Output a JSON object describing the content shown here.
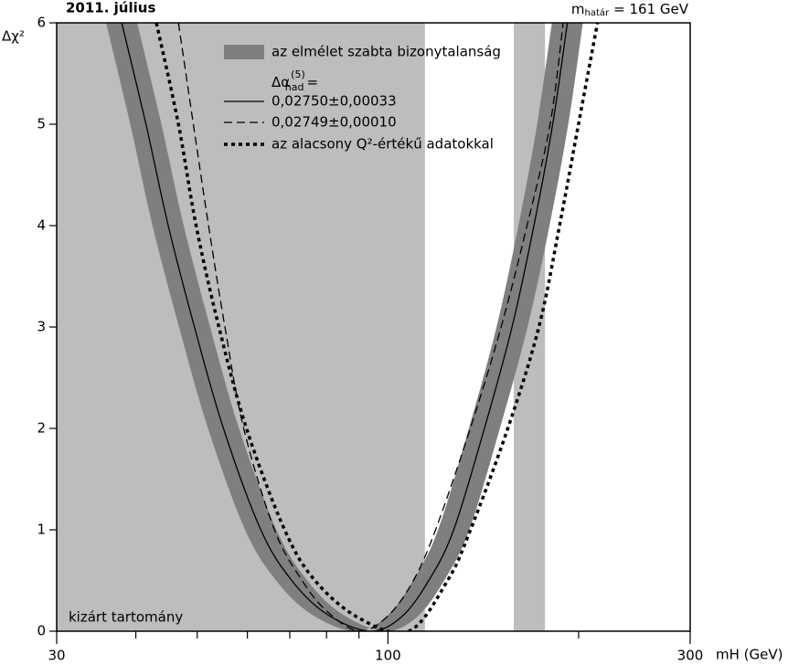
{
  "chart_data": {
    "type": "line",
    "title": "2011. július",
    "limit_label": {
      "main": "m",
      "sub": "határ",
      "rest": "= 161 GeV"
    },
    "y_label": "Δχ²",
    "x_label": "mH (GeV)",
    "xscale": "log",
    "xlim": [
      30,
      300
    ],
    "xticks": [
      30,
      100,
      300
    ],
    "xminor_ticks": [
      40,
      50,
      60,
      70,
      80,
      90,
      200
    ],
    "ylim": [
      0,
      6
    ],
    "yticks": [
      0,
      1,
      2,
      3,
      4,
      5,
      6
    ],
    "excluded": [
      {
        "from": 30,
        "to": 114.4
      },
      {
        "from": 158,
        "to": 177
      }
    ],
    "excluded_color": "#bdbdbd",
    "excluded_label": "kizárt tartomány",
    "legend_title": {
      "main": "Δα",
      "sub": "had",
      "sup": "(5)",
      "suffix": "="
    },
    "series": [
      {
        "name": "az elmélet szabta bizonytalanság",
        "color": "#7f7f7f",
        "style": "band",
        "left_edge": {
          "x": [
            35.9,
            39.2,
            42.5,
            46.8,
            52.0,
            59.5,
            66.6,
            75.6,
            88.4,
            99.2,
            109.6,
            120.0,
            134.2,
            148.4,
            160.7,
            172.0,
            181.5
          ],
          "values": [
            6,
            5,
            4,
            3,
            2,
            1,
            0.5,
            0.17,
            0,
            0.14,
            0.5,
            1,
            2,
            3,
            4,
            5,
            6
          ]
        },
        "right_edge": {
          "x": [
            40.2,
            43.9,
            47.6,
            52.4,
            58.2,
            66.7,
            74.6,
            84.6,
            98.9,
            111.1,
            122.7,
            134.4,
            150.2,
            166.1,
            179.9,
            192.6,
            203.1
          ],
          "values": [
            6,
            5,
            4,
            3,
            2,
            1,
            0.5,
            0.17,
            0,
            0.14,
            0.5,
            1,
            2,
            3,
            4,
            5,
            6
          ]
        }
      },
      {
        "name": "0,02750±0,00033",
        "color": "#000000",
        "style": "solid",
        "x": [
          38,
          41.5,
          45,
          49.5,
          55,
          63,
          70.5,
          80,
          93.5,
          105,
          116,
          127,
          142,
          157,
          170,
          182,
          192
        ],
        "values": [
          6,
          5,
          4,
          3,
          2,
          1,
          0.5,
          0.17,
          0,
          0.14,
          0.5,
          1,
          2,
          3,
          4,
          5,
          6
        ]
      },
      {
        "name": "0,02749±0,00010",
        "color": "#000000",
        "style": "dashed",
        "x": [
          46.7,
          49.3,
          52.1,
          55.3,
          59.2,
          66.2,
          73.2,
          80,
          90,
          100,
          109.7,
          118.9,
          134.9,
          150.9,
          165.8,
          180.3,
          189.1
        ],
        "values": [
          6,
          5,
          4,
          3,
          2,
          1,
          0.5,
          0.2,
          0,
          0.15,
          0.5,
          1,
          2,
          3,
          4,
          5,
          6
        ]
      },
      {
        "name": "az alacsony Q²-értékű adatokkal",
        "color": "#000000",
        "style": "dotted",
        "x": [
          43.1,
          46.7,
          49.8,
          54.1,
          59.8,
          68.7,
          76.7,
          90,
          107.9,
          124.2,
          135,
          154.6,
          173.1,
          186.6,
          199.9,
          214.2
        ],
        "values": [
          6,
          5,
          4,
          3,
          2,
          1,
          0.5,
          0.13,
          0,
          0.5,
          1,
          2,
          3,
          4,
          5,
          6
        ]
      }
    ]
  }
}
